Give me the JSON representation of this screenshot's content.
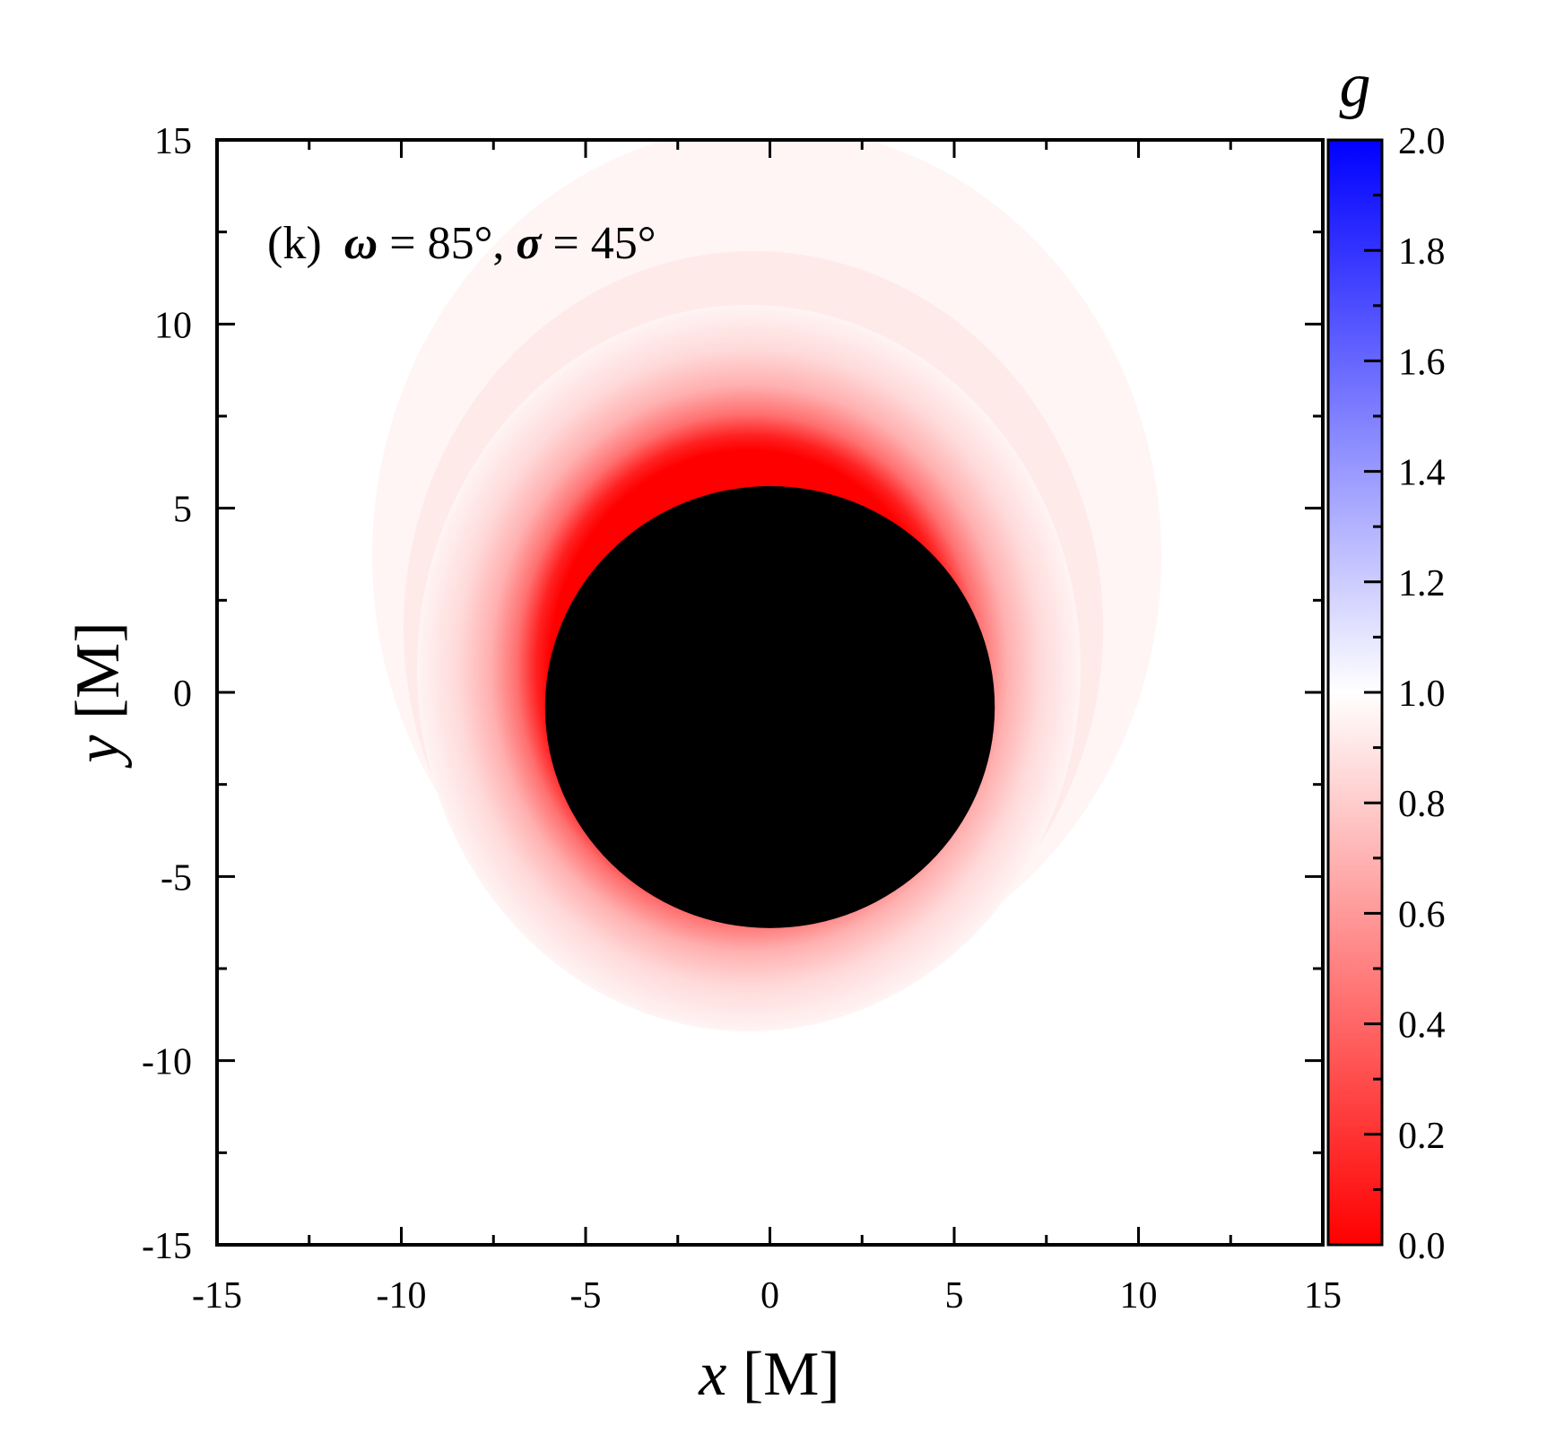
{
  "chart_data": {
    "type": "heatmap",
    "panel_label": "(k)",
    "annotation": {
      "label": "(k)",
      "omega_symbol": "ω",
      "omega_text": " = 85°, ",
      "sigma_symbol": "σ",
      "sigma_text": " = 45°"
    },
    "xlabel": {
      "var": "x",
      "unit": " [M]"
    },
    "ylabel": {
      "var": "y",
      "unit": " [M]"
    },
    "xlim": [
      -15,
      15
    ],
    "ylim": [
      -15,
      15
    ],
    "xticks": [
      -15,
      -10,
      -5,
      0,
      5,
      10,
      15
    ],
    "yticks": [
      -15,
      -10,
      -5,
      0,
      5,
      10,
      15
    ],
    "xtick_labels": [
      "-15",
      "-10",
      "-5",
      "0",
      "5",
      "10",
      "15"
    ],
    "ytick_labels": [
      "-15",
      "-10",
      "-5",
      "0",
      "5",
      "10",
      "15"
    ],
    "shadow": {
      "center": [
        0,
        -0.4
      ],
      "rx": 6.1,
      "ry": 6.0,
      "color": "#000000"
    },
    "image_extent_note": "redshift halo around shadow, strongest red at shadow edge, fading to white outward; halo extends further above and to the upper-left",
    "colorbar": {
      "title": "g",
      "range": [
        0.0,
        2.0
      ],
      "ticks": [
        0.0,
        0.2,
        0.4,
        0.6,
        0.8,
        1.0,
        1.2,
        1.4,
        1.6,
        1.8,
        2.0
      ],
      "tick_labels": [
        "0.0",
        "0.2",
        "0.4",
        "0.6",
        "0.8",
        "1.0",
        "1.2",
        "1.4",
        "1.6",
        "1.8",
        "2.0"
      ],
      "colors": {
        "low": "#ff0000",
        "mid": "#ffffff",
        "high": "#0000ff"
      }
    }
  }
}
